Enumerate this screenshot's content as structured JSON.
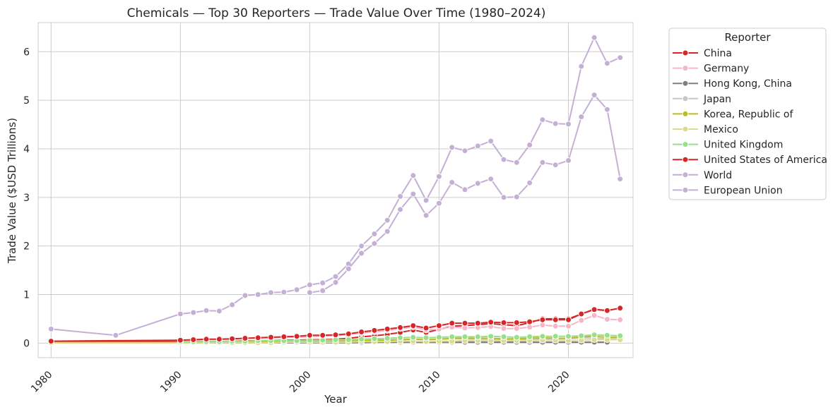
{
  "chart_data": {
    "type": "line",
    "title": "Chemicals — Top 30 Reporters — Trade Value Over Time (1980–2024)",
    "xlabel": "Year",
    "ylabel": "Trade Value ($USD Trillions)",
    "xlim": [
      1979,
      2025
    ],
    "ylim": [
      -0.3,
      6.6
    ],
    "xticks": [
      1980,
      1990,
      2000,
      2010,
      2020
    ],
    "yticks": [
      0,
      1,
      2,
      3,
      4,
      5,
      6
    ],
    "grid": true,
    "legend": {
      "title": "Reporter",
      "placement": "outside-right"
    },
    "series": [
      {
        "name": "China",
        "color": "#d62728",
        "x": [
          1980,
          1990,
          1991,
          1992,
          1993,
          1994,
          1995,
          1996,
          1997,
          1998,
          1999,
          2000,
          2001,
          2002,
          2003,
          2004,
          2005,
          2006,
          2007,
          2008,
          2009,
          2010,
          2011,
          2012,
          2013,
          2014,
          2015,
          2016,
          2017,
          2018,
          2019,
          2020,
          2021,
          2022,
          2023,
          2024
        ],
        "y": [
          0.03,
          0.03,
          0.03,
          0.03,
          0.03,
          0.04,
          0.05,
          0.05,
          0.05,
          0.06,
          0.06,
          0.07,
          0.07,
          0.08,
          0.1,
          0.13,
          0.15,
          0.18,
          0.22,
          0.27,
          0.22,
          0.28,
          0.35,
          0.36,
          0.38,
          0.4,
          0.38,
          0.36,
          0.42,
          0.5,
          0.5,
          0.5,
          0.6,
          0.7,
          0.67,
          0.72
        ]
      },
      {
        "name": "Germany",
        "color": "#f7b6c8",
        "x": [
          1990,
          1991,
          1992,
          1993,
          1994,
          1995,
          1996,
          1997,
          1998,
          1999,
          2000,
          2001,
          2002,
          2003,
          2004,
          2005,
          2006,
          2007,
          2008,
          2009,
          2010,
          2011,
          2012,
          2013,
          2014,
          2015,
          2016,
          2017,
          2018,
          2019,
          2020,
          2021,
          2022,
          2023,
          2024
        ],
        "y": [
          0.06,
          0.06,
          0.07,
          0.07,
          0.08,
          0.1,
          0.1,
          0.11,
          0.12,
          0.12,
          0.13,
          0.14,
          0.15,
          0.18,
          0.21,
          0.23,
          0.26,
          0.3,
          0.33,
          0.27,
          0.29,
          0.33,
          0.31,
          0.32,
          0.34,
          0.3,
          0.3,
          0.33,
          0.37,
          0.35,
          0.35,
          0.47,
          0.57,
          0.49,
          0.48
        ]
      },
      {
        "name": "Hong Kong, China",
        "color": "#7f7f7f",
        "x": [
          1990,
          1991,
          1992,
          1993,
          1994,
          1995,
          1996,
          1997,
          1998,
          1999,
          2000,
          2001,
          2002,
          2003,
          2004,
          2005,
          2006,
          2007,
          2008,
          2009,
          2010,
          2011,
          2012,
          2013,
          2014,
          2015,
          2016,
          2017,
          2018,
          2019,
          2020,
          2021,
          2022,
          2023
        ],
        "y": [
          0.01,
          0.01,
          0.01,
          0.01,
          0.01,
          0.01,
          0.01,
          0.01,
          0.01,
          0.01,
          0.01,
          0.01,
          0.01,
          0.01,
          0.01,
          0.02,
          0.02,
          0.02,
          0.02,
          0.02,
          0.02,
          0.02,
          0.02,
          0.02,
          0.02,
          0.02,
          0.02,
          0.02,
          0.02,
          0.02,
          0.02,
          0.02,
          0.02,
          0.02
        ]
      },
      {
        "name": "Japan",
        "color": "#c7c7c7",
        "x": [
          1990,
          1991,
          1992,
          1993,
          1994,
          1995,
          1996,
          1997,
          1998,
          1999,
          2000,
          2001,
          2002,
          2003,
          2004,
          2005,
          2006,
          2007,
          2008,
          2009,
          2010,
          2011,
          2012,
          2013,
          2014,
          2015,
          2016,
          2017,
          2018,
          2019,
          2020,
          2021,
          2022,
          2023,
          2024
        ],
        "y": [
          0.03,
          0.03,
          0.03,
          0.03,
          0.04,
          0.04,
          0.04,
          0.04,
          0.04,
          0.04,
          0.05,
          0.04,
          0.05,
          0.05,
          0.06,
          0.06,
          0.07,
          0.07,
          0.08,
          0.07,
          0.08,
          0.09,
          0.09,
          0.08,
          0.08,
          0.07,
          0.07,
          0.08,
          0.09,
          0.09,
          0.09,
          0.11,
          0.1,
          0.09,
          0.09
        ]
      },
      {
        "name": "Korea, Republic of",
        "color": "#bcbd22",
        "x": [
          1980,
          1990,
          1991,
          1992,
          1993,
          1994,
          1995,
          1996,
          1997,
          1998,
          1999,
          2000,
          2001,
          2002,
          2003,
          2004,
          2005,
          2006,
          2007,
          2008,
          2009,
          2010,
          2011,
          2012,
          2013,
          2014,
          2015,
          2016,
          2017,
          2018,
          2019,
          2020,
          2021,
          2022,
          2023,
          2024
        ],
        "y": [
          0.01,
          0.01,
          0.01,
          0.01,
          0.02,
          0.02,
          0.03,
          0.03,
          0.03,
          0.03,
          0.03,
          0.04,
          0.03,
          0.04,
          0.04,
          0.05,
          0.06,
          0.06,
          0.07,
          0.08,
          0.07,
          0.08,
          0.1,
          0.1,
          0.1,
          0.1,
          0.09,
          0.09,
          0.1,
          0.11,
          0.1,
          0.1,
          0.13,
          0.14,
          0.12,
          0.12
        ]
      },
      {
        "name": "Mexico",
        "color": "#dbdb8d",
        "x": [
          1980,
          1990,
          1991,
          1992,
          1993,
          1994,
          1995,
          1996,
          1997,
          1998,
          1999,
          2000,
          2001,
          2002,
          2003,
          2004,
          2005,
          2006,
          2007,
          2008,
          2009,
          2010,
          2011,
          2012,
          2013,
          2014,
          2015,
          2016,
          2017,
          2018,
          2019,
          2020,
          2021,
          2022,
          2023,
          2024
        ],
        "y": [
          0.01,
          0.01,
          0.01,
          0.01,
          0.01,
          0.01,
          0.01,
          0.01,
          0.01,
          0.02,
          0.02,
          0.02,
          0.02,
          0.02,
          0.02,
          0.03,
          0.03,
          0.03,
          0.04,
          0.04,
          0.03,
          0.04,
          0.04,
          0.05,
          0.05,
          0.05,
          0.05,
          0.05,
          0.05,
          0.06,
          0.06,
          0.05,
          0.06,
          0.07,
          0.07,
          0.07
        ]
      },
      {
        "name": "United Kingdom",
        "color": "#98df8a",
        "x": [
          1990,
          1991,
          1992,
          1993,
          1994,
          1995,
          1996,
          1997,
          1998,
          1999,
          2000,
          2001,
          2002,
          2003,
          2004,
          2005,
          2006,
          2007,
          2008,
          2009,
          2010,
          2011,
          2012,
          2013,
          2014,
          2015,
          2016,
          2017,
          2018,
          2019,
          2020,
          2021,
          2022,
          2023,
          2024
        ],
        "y": [
          0.03,
          0.03,
          0.03,
          0.03,
          0.04,
          0.04,
          0.05,
          0.05,
          0.05,
          0.05,
          0.06,
          0.06,
          0.07,
          0.07,
          0.08,
          0.09,
          0.1,
          0.11,
          0.12,
          0.11,
          0.12,
          0.13,
          0.13,
          0.13,
          0.14,
          0.13,
          0.12,
          0.13,
          0.14,
          0.14,
          0.14,
          0.15,
          0.17,
          0.16,
          0.15
        ]
      },
      {
        "name": "United States of America",
        "color": "#d62728",
        "x": [
          1980,
          1990,
          1991,
          1992,
          1993,
          1994,
          1995,
          1996,
          1997,
          1998,
          1999,
          2000,
          2001,
          2002,
          2003,
          2004,
          2005,
          2006,
          2007,
          2008,
          2009,
          2010,
          2011,
          2012,
          2013,
          2014,
          2015,
          2016,
          2017,
          2018,
          2019,
          2020,
          2021,
          2022,
          2023,
          2024
        ],
        "y": [
          0.04,
          0.06,
          0.07,
          0.08,
          0.08,
          0.09,
          0.1,
          0.11,
          0.12,
          0.13,
          0.14,
          0.16,
          0.16,
          0.17,
          0.19,
          0.23,
          0.26,
          0.29,
          0.32,
          0.36,
          0.31,
          0.36,
          0.41,
          0.41,
          0.41,
          0.43,
          0.42,
          0.42,
          0.44,
          0.48,
          0.48,
          0.48,
          0.6,
          0.69,
          0.67,
          0.72
        ]
      },
      {
        "name": "World",
        "color": "#c5b0d5",
        "x": [
          1980,
          1985,
          1990,
          1991,
          1992,
          1993,
          1994,
          1995,
          1996,
          1997,
          1998,
          1999,
          2000,
          2001,
          2002,
          2003,
          2004,
          2005,
          2006,
          2007,
          2008,
          2009,
          2010,
          2011,
          2012,
          2013,
          2014,
          2015,
          2016,
          2017,
          2018,
          2019,
          2020,
          2021,
          2022,
          2023,
          2024
        ],
        "y": [
          0.29,
          0.16,
          0.6,
          0.63,
          0.67,
          0.66,
          0.79,
          0.98,
          1.0,
          1.04,
          1.05,
          1.1,
          1.2,
          1.24,
          1.37,
          1.63,
          2.0,
          2.25,
          2.53,
          3.02,
          3.45,
          2.94,
          3.43,
          4.03,
          3.96,
          4.06,
          4.16,
          3.78,
          3.72,
          4.08,
          4.6,
          4.52,
          4.51,
          5.7,
          6.29,
          5.76,
          5.88
        ]
      },
      {
        "name": "European Union",
        "color": "#c5b0d5",
        "x": [
          2000,
          2001,
          2002,
          2003,
          2004,
          2005,
          2006,
          2007,
          2008,
          2009,
          2010,
          2011,
          2012,
          2013,
          2014,
          2015,
          2016,
          2017,
          2018,
          2019,
          2020,
          2021,
          2022,
          2023,
          2024
        ],
        "y": [
          1.04,
          1.08,
          1.25,
          1.53,
          1.85,
          2.05,
          2.3,
          2.75,
          3.07,
          2.63,
          2.88,
          3.31,
          3.16,
          3.29,
          3.38,
          3.0,
          3.01,
          3.3,
          3.72,
          3.67,
          3.76,
          4.66,
          5.11,
          4.81,
          3.38
        ]
      }
    ]
  }
}
